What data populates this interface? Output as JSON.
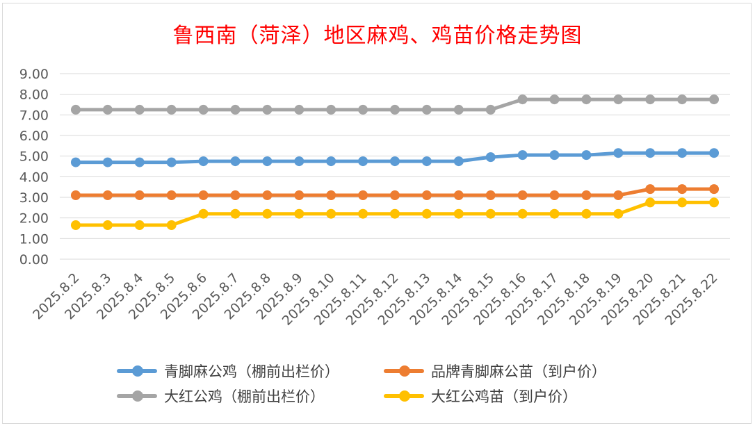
{
  "chart_data": {
    "type": "line",
    "title": "鲁西南（菏泽）地区麻鸡、鸡苗价格走势图",
    "xlabel": "",
    "ylabel": "",
    "ylim": [
      0,
      9
    ],
    "yticks": [
      "0.00",
      "1.00",
      "2.00",
      "3.00",
      "4.00",
      "5.00",
      "6.00",
      "7.00",
      "8.00",
      "9.00"
    ],
    "grid": true,
    "legend_position": "bottom",
    "categories": [
      "2025.8.2",
      "2025.8.3",
      "2025.8.4",
      "2025.8.5",
      "2025.8.6",
      "2025.8.7",
      "2025.8.8",
      "2025.8.9",
      "2025.8.10",
      "2025.8.11",
      "2025.8.12",
      "2025.8.13",
      "2025.8.14",
      "2025.8.15",
      "2025.8.16",
      "2025.8.17",
      "2025.8.18",
      "2025.8.19",
      "2025.8.20",
      "2025.8.21",
      "2025.8.22"
    ],
    "series": [
      {
        "name": "青脚麻公鸡（棚前出栏价）",
        "color": "#5b9bd5",
        "values": [
          4.7,
          4.7,
          4.7,
          4.7,
          4.75,
          4.75,
          4.75,
          4.75,
          4.75,
          4.75,
          4.75,
          4.75,
          4.75,
          4.95,
          5.05,
          5.05,
          5.05,
          5.15,
          5.15,
          5.15,
          5.15
        ]
      },
      {
        "name": "品牌青脚麻公苗（到户价）",
        "color": "#ed7d31",
        "values": [
          3.1,
          3.1,
          3.1,
          3.1,
          3.1,
          3.1,
          3.1,
          3.1,
          3.1,
          3.1,
          3.1,
          3.1,
          3.1,
          3.1,
          3.1,
          3.1,
          3.1,
          3.1,
          3.4,
          3.4,
          3.4
        ]
      },
      {
        "name": "大红公鸡（棚前出栏价）",
        "color": "#a5a5a5",
        "values": [
          7.25,
          7.25,
          7.25,
          7.25,
          7.25,
          7.25,
          7.25,
          7.25,
          7.25,
          7.25,
          7.25,
          7.25,
          7.25,
          7.25,
          7.75,
          7.75,
          7.75,
          7.75,
          7.75,
          7.75,
          7.75
        ]
      },
      {
        "name": "大红公鸡苗（到户价）",
        "color": "#ffc000",
        "values": [
          1.65,
          1.65,
          1.65,
          1.65,
          2.2,
          2.2,
          2.2,
          2.2,
          2.2,
          2.2,
          2.2,
          2.2,
          2.2,
          2.2,
          2.2,
          2.2,
          2.2,
          2.2,
          2.75,
          2.75,
          2.75
        ]
      }
    ]
  }
}
